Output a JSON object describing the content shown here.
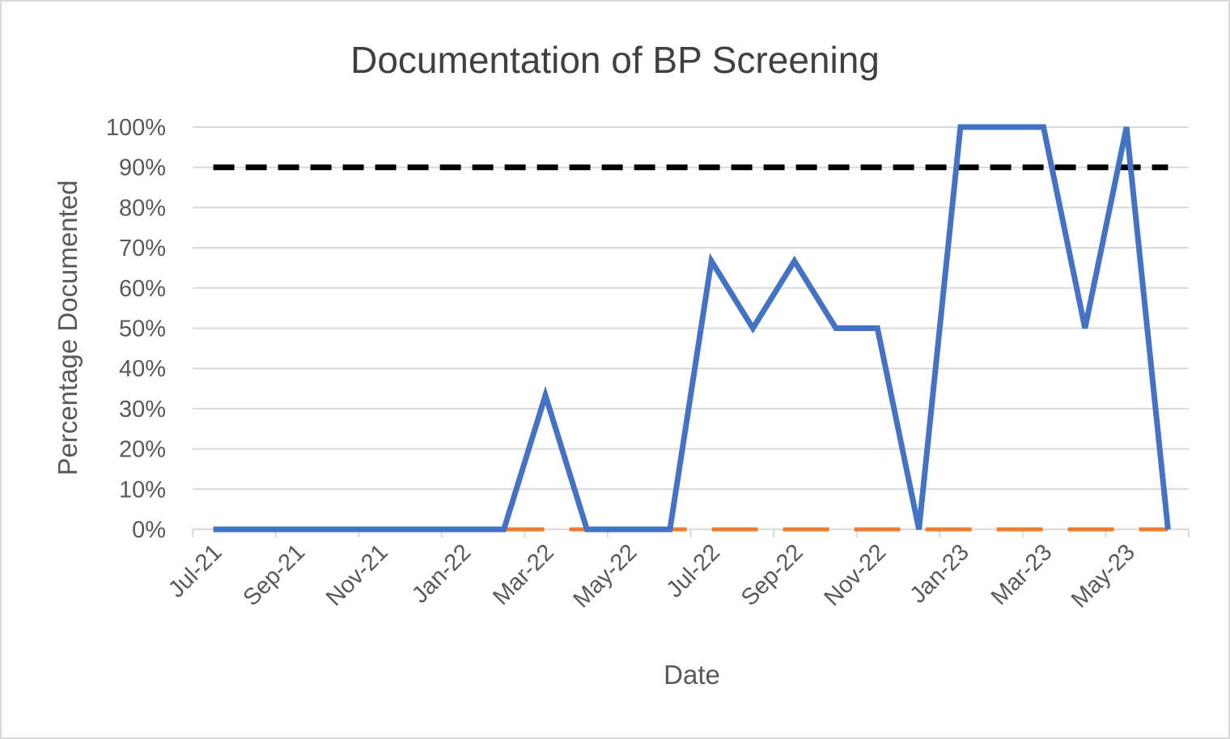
{
  "chart_data": {
    "type": "line",
    "title": "Documentation of BP Screening",
    "xlabel": "Date",
    "ylabel": "Percentage Documented",
    "ylim": [
      0,
      100
    ],
    "y_ticks": [
      "0%",
      "10%",
      "20%",
      "30%",
      "40%",
      "50%",
      "60%",
      "70%",
      "80%",
      "90%",
      "100%"
    ],
    "x_ticks": [
      "Jul-21",
      "Sep-21",
      "Nov-21",
      "Jan-22",
      "Mar-22",
      "May-22",
      "Jul-22",
      "Sep-22",
      "Nov-22",
      "Jan-23",
      "Mar-23",
      "May-23"
    ],
    "categories": [
      "Jul-21",
      "Aug-21",
      "Sep-21",
      "Oct-21",
      "Nov-21",
      "Dec-21",
      "Jan-22",
      "Feb-22",
      "Mar-22",
      "Apr-22",
      "May-22",
      "Jun-22",
      "Jul-22",
      "Aug-22",
      "Sep-22",
      "Oct-22",
      "Nov-22",
      "Dec-22",
      "Jan-23",
      "Feb-23",
      "Mar-23",
      "Apr-23",
      "May-23",
      "Jun-23"
    ],
    "grid": true,
    "legend": "none",
    "series": [
      {
        "color": "#4472c4",
        "style": "solid",
        "values": [
          0,
          0,
          0,
          0,
          0,
          0,
          0,
          0,
          33.3,
          0,
          0,
          0,
          66.7,
          50,
          66.7,
          50,
          50,
          0,
          100,
          100,
          100,
          50,
          100,
          0
        ]
      },
      {
        "color": "#ed7d31",
        "style": "dashed",
        "values": [
          0,
          0,
          0,
          0,
          0,
          0,
          0,
          0,
          0,
          0,
          0,
          0,
          0,
          0,
          0,
          0,
          0,
          0,
          0,
          0,
          0,
          0,
          0,
          0
        ]
      },
      {
        "color": "#000000",
        "style": "dashed",
        "values": [
          90,
          90,
          90,
          90,
          90,
          90,
          90,
          90,
          90,
          90,
          90,
          90,
          90,
          90,
          90,
          90,
          90,
          90,
          90,
          90,
          90,
          90,
          90,
          90
        ]
      }
    ]
  }
}
